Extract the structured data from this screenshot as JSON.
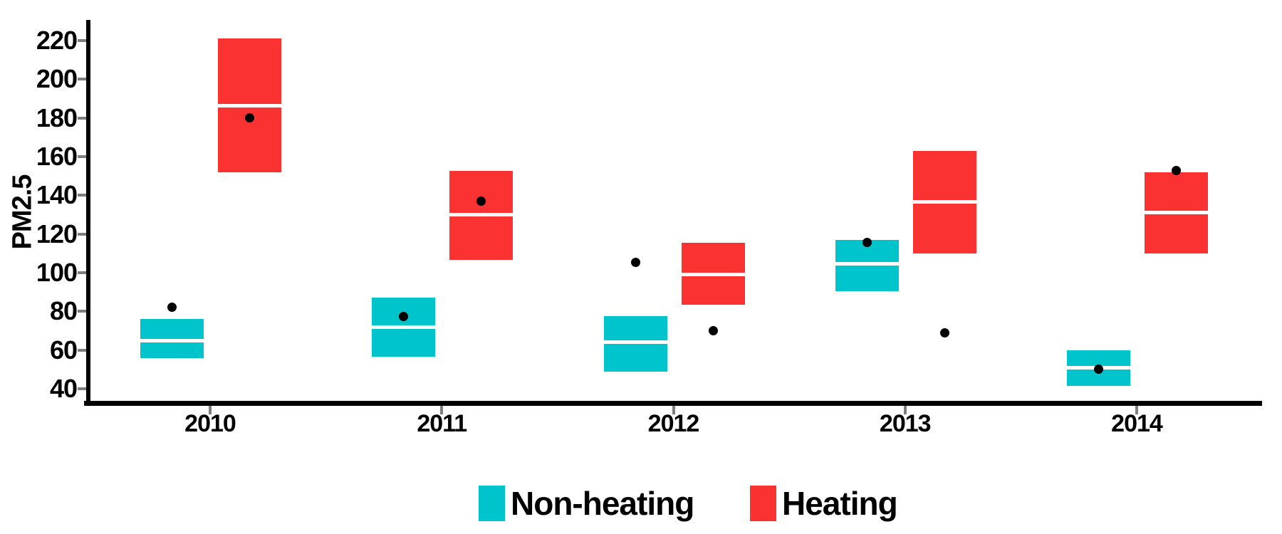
{
  "chart_data": {
    "type": "box",
    "variant": "crossbar-boxplot-with-point",
    "title": "",
    "xlabel": "",
    "ylabel": "PM2.5",
    "categories": [
      "2010",
      "2011",
      "2012",
      "2013",
      "2014"
    ],
    "yticks": [
      40,
      60,
      80,
      100,
      120,
      140,
      160,
      180,
      200,
      220
    ],
    "ylim": [
      32,
      230
    ],
    "grid": false,
    "legend_position": "bottom",
    "point_color": "#000000",
    "median_line_color": "#FFFFFF",
    "tick_color": "#7E7E7E",
    "axis_color": "#000000",
    "series": [
      {
        "name": "Non-heating",
        "color": "#00C4CC",
        "boxes": [
          {
            "year": "2010",
            "low": 56,
            "high": 76,
            "mid": 65,
            "point": 82
          },
          {
            "year": "2011",
            "low": 56.5,
            "high": 87,
            "mid": 72,
            "point": 77.5
          },
          {
            "year": "2012",
            "low": 49,
            "high": 77.5,
            "mid": 64,
            "point": 105.5
          },
          {
            "year": "2013",
            "low": 90.5,
            "high": 117,
            "mid": 104.5,
            "point": 115.5
          },
          {
            "year": "2014",
            "low": 41.5,
            "high": 60,
            "mid": 51,
            "point": 50
          }
        ]
      },
      {
        "name": "Heating",
        "color": "#FA3232",
        "boxes": [
          {
            "year": "2010",
            "low": 152,
            "high": 221,
            "mid": 186.5,
            "point": 180
          },
          {
            "year": "2011",
            "low": 106.5,
            "high": 152.5,
            "mid": 130,
            "point": 137
          },
          {
            "year": "2012",
            "low": 83.5,
            "high": 115.5,
            "mid": 99,
            "point": 70
          },
          {
            "year": "2013",
            "low": 110,
            "high": 163,
            "mid": 136.5,
            "point": 69
          },
          {
            "year": "2014",
            "low": 110,
            "high": 152,
            "mid": 131,
            "point": 153
          }
        ]
      }
    ]
  },
  "legend": {
    "items": [
      {
        "label": "Non-heating",
        "color": "#00C4CC"
      },
      {
        "label": "Heating",
        "color": "#FA3232"
      }
    ]
  }
}
